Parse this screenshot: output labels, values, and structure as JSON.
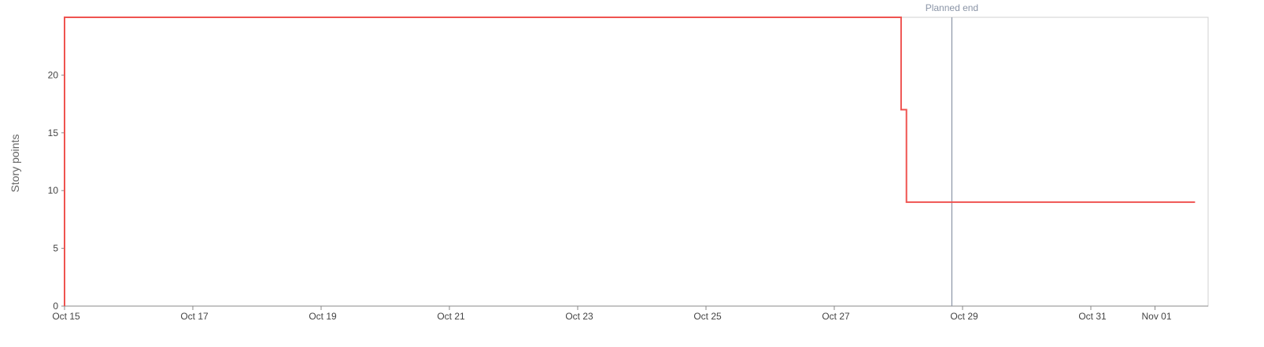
{
  "chart_data": {
    "type": "line",
    "interpolation": "step",
    "ylabel": "Story points",
    "xlabel": "",
    "title": "",
    "x_axis": {
      "type": "date",
      "range": [
        "2023-10-15",
        "2023-11-01T15:00"
      ],
      "tick_labels": [
        "Oct 15",
        "Oct 17",
        "Oct 19",
        "Oct 21",
        "Oct 23",
        "Oct 25",
        "Oct 27",
        "Oct 29",
        "Oct 31",
        "Nov 01"
      ],
      "tick_dates": [
        "2023-10-15",
        "2023-10-17",
        "2023-10-19",
        "2023-10-21",
        "2023-10-23",
        "2023-10-25",
        "2023-10-27",
        "2023-10-29",
        "2023-10-31",
        "2023-11-01"
      ]
    },
    "y_axis": {
      "range": [
        0,
        25
      ],
      "ticks": [
        0,
        5,
        10,
        15,
        20
      ]
    },
    "series": [
      {
        "name": "",
        "color": "#ef5350",
        "points": [
          {
            "x": "2023-10-15",
            "y": 0
          },
          {
            "x": "2023-10-15",
            "y": 25
          },
          {
            "x": "2023-10-28T01:00",
            "y": 25
          },
          {
            "x": "2023-10-28T01:00",
            "y": 17
          },
          {
            "x": "2023-10-28T03:00",
            "y": 17
          },
          {
            "x": "2023-10-28T03:00",
            "y": 9
          },
          {
            "x": "2023-11-01T15:00",
            "y": 9
          }
        ]
      }
    ],
    "annotations": [
      {
        "type": "vertical-line",
        "x": "2023-10-28T20:00",
        "label": "Planned end",
        "color": "#8a94a6"
      }
    ],
    "grid": false,
    "frame_color": "#d0d0d0"
  }
}
